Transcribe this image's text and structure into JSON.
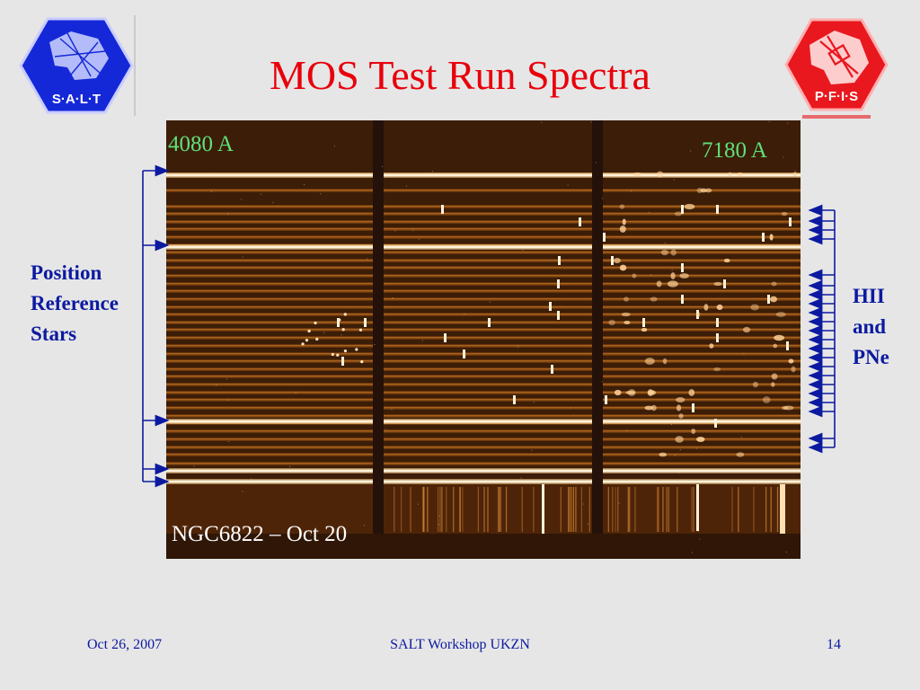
{
  "slide": {
    "title": "MOS Test Run Spectra"
  },
  "logos": {
    "left": {
      "icon": "salt-logo-icon",
      "text": "S·A·L·T",
      "color": "#1528d8"
    },
    "right": {
      "icon": "pfis-logo-icon",
      "text": "P·F·I·S",
      "color": "#e8181e"
    }
  },
  "spectra": {
    "wavelength_start": "4080 A",
    "wavelength_end": "7180 A",
    "caption": "NGC6822 – Oct 20",
    "accent": "#ffb060",
    "background": "#3a1c06"
  },
  "labels": {
    "left": [
      "Position",
      "Reference",
      "Stars"
    ],
    "right": [
      "HII",
      "and",
      "PNe"
    ]
  },
  "footer": {
    "date": "Oct 26, 2007",
    "event": "SALT Workshop UKZN",
    "page": "14"
  }
}
